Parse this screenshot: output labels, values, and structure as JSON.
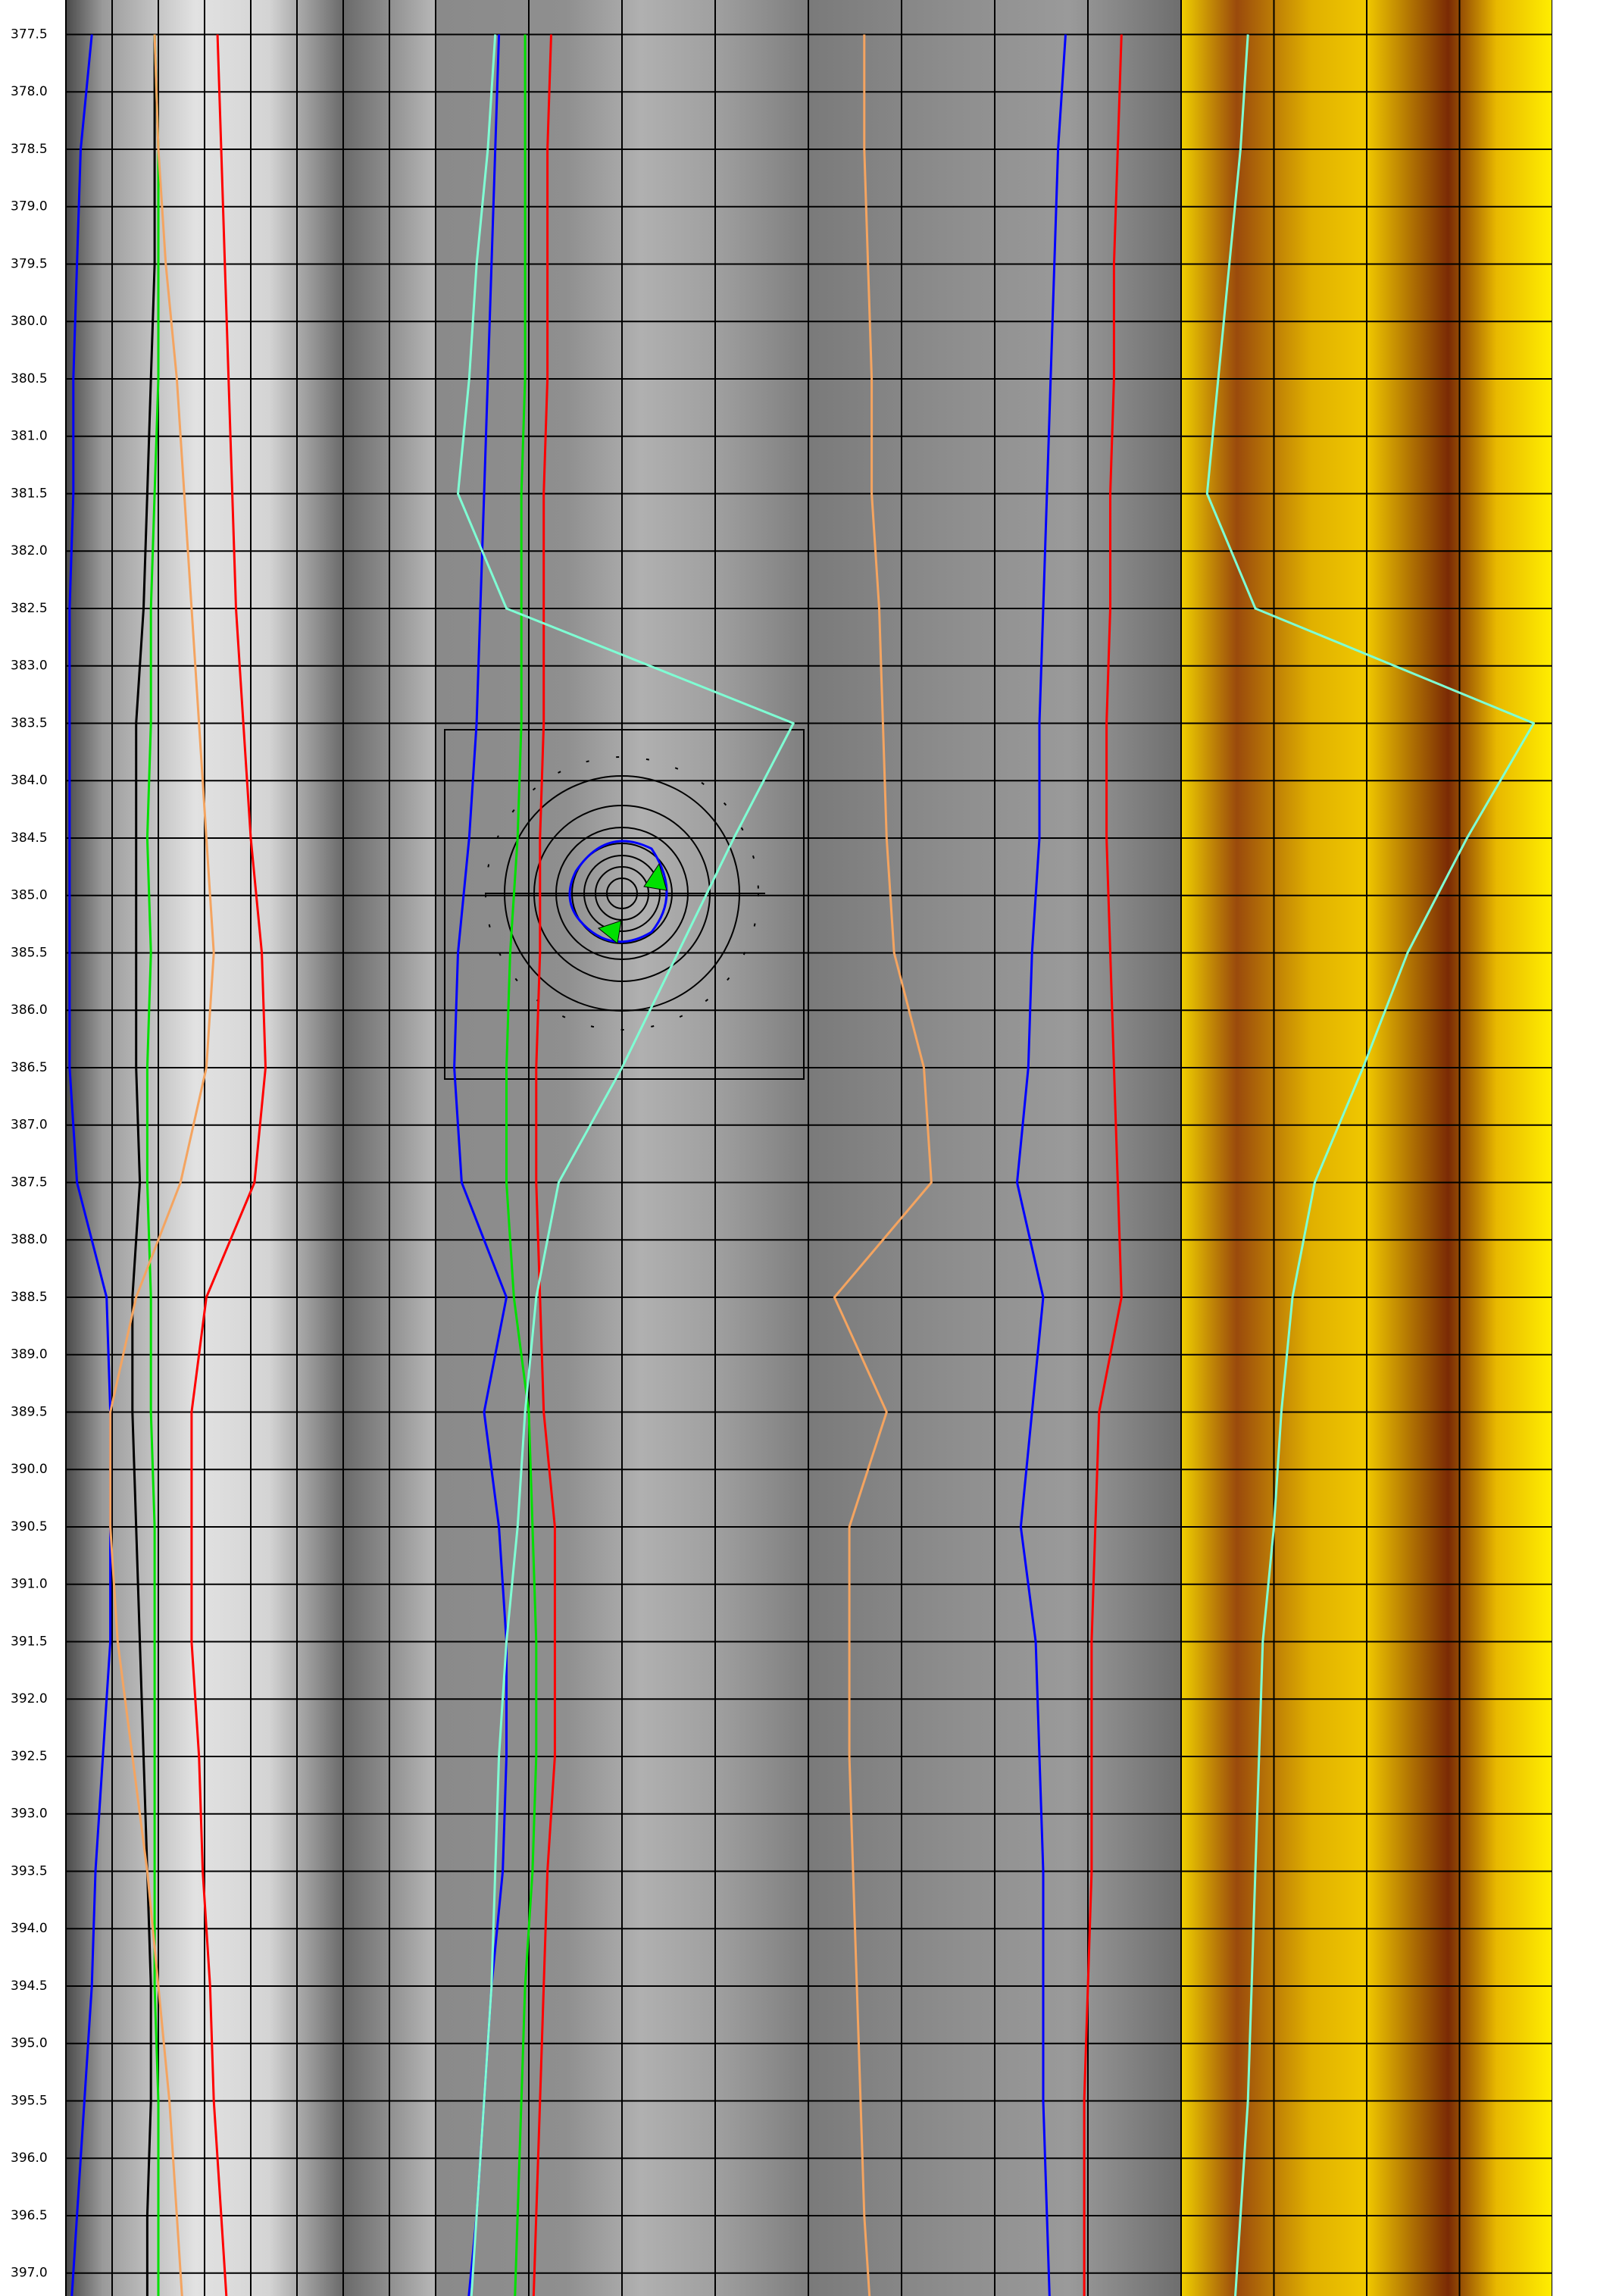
{
  "chart_data": {
    "type": "well-log",
    "x": [
      377.5,
      378.5,
      379.5,
      380.5,
      381.5,
      382.5,
      383.5,
      384.5,
      385.5,
      386.5,
      387.5,
      388.5,
      389.5,
      390.5,
      391.5,
      392.5,
      393.5,
      394.5,
      395.5,
      396.5,
      397.5
    ],
    "ylim": [
      377.2,
      397.2
    ],
    "yticks": [
      377.5,
      {
        "value": 378,
        "label": "378.0"
      },
      378.5,
      {
        "value": 379,
        "label": "379.0"
      },
      379.5,
      {
        "value": 380,
        "label": "380.0"
      },
      380.5,
      {
        "value": 381,
        "label": "381.0"
      },
      381.5,
      {
        "value": 382,
        "label": "382.0"
      },
      382.5,
      {
        "value": 383,
        "label": "383.0"
      },
      383.5,
      {
        "value": 384,
        "label": "384.0"
      },
      384.5,
      {
        "value": 385,
        "label": "385.0"
      },
      385.5,
      {
        "value": 386,
        "label": "386.0"
      },
      386.5,
      {
        "value": 387,
        "label": "387.0"
      },
      387.5,
      {
        "value": 388,
        "label": "388.0"
      },
      388.5,
      {
        "value": 389,
        "label": "389.0"
      },
      389.5,
      {
        "value": 390,
        "label": "390.0"
      },
      390.5,
      {
        "value": 391,
        "label": "391.0"
      },
      391.5,
      {
        "value": 392,
        "label": "392.0"
      },
      392.5,
      {
        "value": 393,
        "label": "393.0"
      },
      393.5,
      {
        "value": 394,
        "label": "394.0"
      },
      394.5,
      {
        "value": 395,
        "label": "395.0"
      },
      395.5,
      {
        "value": 396,
        "label": "396.0"
      },
      396.5,
      {
        "value": 397,
        "label": "397.0"
      }
    ],
    "grid": true,
    "tracks": [
      {
        "xlim": [
          0,
          100
        ],
        "xticks": [
          0,
          12.5,
          25,
          37.5,
          50,
          62.5,
          75,
          87.5,
          100
        ],
        "series": [
          {
            "color": "#0000ff",
            "values": [
              7,
              4,
              3,
              2,
              2,
              1,
              1,
              1,
              1,
              1,
              3,
              11,
              12,
              12,
              12,
              10,
              8,
              7,
              5,
              3,
              1
            ]
          },
          {
            "color": "#000000",
            "values": [
              24,
              24,
              24,
              23,
              22,
              21,
              19,
              19,
              19,
              19,
              20,
              18,
              18,
              19,
              20,
              21,
              22,
              23,
              23,
              22,
              22
            ]
          },
          {
            "color": "#00e000",
            "values": [
              24,
              25,
              25,
              25,
              24,
              23,
              23,
              22,
              23,
              22,
              22,
              23,
              23,
              24,
              24,
              24,
              24,
              24,
              25,
              25,
              25
            ]
          },
          {
            "color": "#f4a460",
            "values": [
              24,
              25,
              27,
              30,
              32,
              34,
              36,
              38,
              40,
              38,
              31,
              19,
              12,
              12,
              14,
              18,
              22,
              25,
              28,
              30,
              32
            ]
          },
          {
            "color": "#ff0000",
            "values": [
              41,
              42,
              43,
              44,
              45,
              46,
              48,
              50,
              53,
              54,
              51,
              38,
              34,
              34,
              34,
              36,
              37,
              39,
              40,
              42,
              44
            ]
          }
        ]
      },
      {
        "xlim": [
          0,
          100
        ],
        "xticks": [
          0,
          25,
          50,
          75,
          100
        ],
        "series": [
          {
            "color": "#0000ff",
            "values": [
              17,
              16,
              15,
              14,
              13,
              12,
              11,
              9,
              6,
              5,
              7,
              19,
              13,
              17,
              19,
              19,
              18,
              15,
              13,
              11,
              8
            ]
          },
          {
            "color": "#00e000",
            "values": [
              24,
              24,
              24,
              24,
              23,
              23,
              23,
              22,
              20,
              19,
              19,
              21,
              25,
              26,
              27,
              27,
              26,
              24,
              23,
              22,
              21
            ]
          },
          {
            "color": "#ff0000",
            "values": [
              31,
              30,
              30,
              30,
              29,
              29,
              29,
              28,
              28,
              27,
              27,
              28,
              29,
              32,
              32,
              32,
              30,
              29,
              28,
              27,
              26
            ]
          },
          {
            "color": "#7fffd4",
            "values": [
              16,
              14,
              11,
              9,
              6,
              19,
              96,
              80,
              65,
              50,
              33,
              27,
              24,
              22,
              19,
              17,
              16,
              15,
              13,
              11,
              9
            ]
          }
        ]
      },
      {
        "xlim": [
          0,
          100
        ],
        "xticks": [
          0,
          25,
          50,
          75,
          100
        ],
        "series": [
          {
            "color": "#f4a460",
            "values": [
              15,
              15,
              16,
              17,
              17,
              19,
              20,
              21,
              23,
              31,
              33,
              7,
              21,
              11,
              11,
              11,
              12,
              13,
              14,
              15,
              17
            ]
          },
          {
            "color": "#0000ff",
            "values": [
              69,
              67,
              66,
              65,
              64,
              63,
              62,
              62,
              60,
              59,
              56,
              63,
              60,
              57,
              61,
              62,
              63,
              63,
              63,
              64,
              65
            ]
          },
          {
            "color": "#ff0000",
            "values": [
              84,
              83,
              82,
              82,
              81,
              81,
              80,
              80,
              81,
              82,
              83,
              84,
              78,
              77,
              76,
              76,
              76,
              75,
              74,
              74,
              74
            ]
          }
        ]
      },
      {
        "xlim": [
          0,
          100
        ],
        "xticks": [
          0,
          25,
          50,
          75,
          100
        ],
        "series": [
          {
            "color": "#7fffd4",
            "values": [
              18,
              16,
              13,
              10,
              7,
              20,
              95,
              77,
              61,
              49,
              36,
              30,
              27,
              25,
              22,
              21,
              20,
              19,
              18,
              16,
              14
            ]
          }
        ]
      }
    ]
  }
}
